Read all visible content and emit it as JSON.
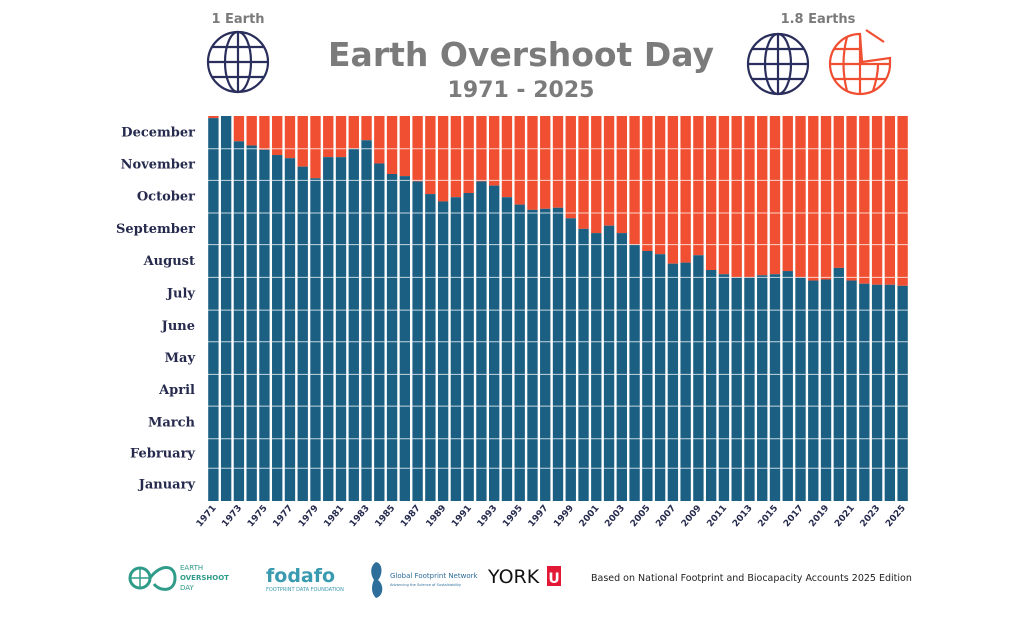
{
  "chart_data": {
    "type": "bar",
    "title": "Earth Overshoot Day",
    "subtitle": "1971 - 2025",
    "stacked": true,
    "categories": [
      1971,
      1972,
      1973,
      1974,
      1975,
      1976,
      1977,
      1978,
      1979,
      1980,
      1981,
      1982,
      1983,
      1984,
      1985,
      1986,
      1987,
      1988,
      1989,
      1990,
      1991,
      1992,
      1993,
      1994,
      1995,
      1996,
      1997,
      1998,
      1999,
      2000,
      2001,
      2002,
      2003,
      2004,
      2005,
      2006,
      2007,
      2008,
      2009,
      2010,
      2011,
      2012,
      2013,
      2014,
      2015,
      2016,
      2017,
      2018,
      2019,
      2020,
      2021,
      2022,
      2023,
      2024,
      2025
    ],
    "series": [
      {
        "role": "overshoot day (day of year)",
        "color": "#1b5f82",
        "values": [
          363,
          365,
          341,
          337,
          333,
          328,
          325,
          317,
          306,
          326,
          326,
          334,
          342,
          320,
          310,
          308,
          303,
          291,
          284,
          288,
          292,
          303,
          299,
          288,
          281,
          276,
          277,
          278,
          268,
          258,
          254,
          261,
          254,
          243,
          237,
          234,
          225,
          226,
          233,
          219,
          215,
          212,
          212,
          214,
          215,
          218,
          212,
          209,
          210,
          221,
          209,
          206,
          205,
          205,
          204
        ]
      },
      {
        "role": "remainder of year",
        "color": "#f04f32"
      }
    ],
    "ylim": [
      0,
      365
    ],
    "y_tick_labels": [
      "January",
      "February",
      "March",
      "April",
      "May",
      "June",
      "July",
      "August",
      "September",
      "October",
      "November",
      "December"
    ],
    "x_tick_labels_every": 2,
    "grid": "horizontal white lines at month boundaries"
  },
  "header": {
    "left_label": "1 Earth",
    "right_label": "1.8 Earths",
    "icons": [
      "globe-icon",
      "globe-icon",
      "partial-globe-icon"
    ]
  },
  "footer": {
    "logos": [
      {
        "name": "earth-overshoot-day-logo",
        "lines": [
          "EARTH",
          "OVERSHOOT",
          "DAY"
        ],
        "color": "#2f9c8a"
      },
      {
        "name": "fodafo-logo",
        "text": "fodafo",
        "sub": "FOOTPRINT DATA FOUNDATION",
        "color": "#3a9ab0"
      },
      {
        "name": "global-footprint-network-logo",
        "text": "Global Footprint Network",
        "sub": "Advancing the Science of Sustainability",
        "color": "#2d6e9a"
      },
      {
        "name": "york-u-logo",
        "text": "YORK",
        "mark": "U",
        "color": "#e31837"
      }
    ],
    "source_note": "Based on National Footprint and Biocapacity Accounts 2025 Edition"
  }
}
